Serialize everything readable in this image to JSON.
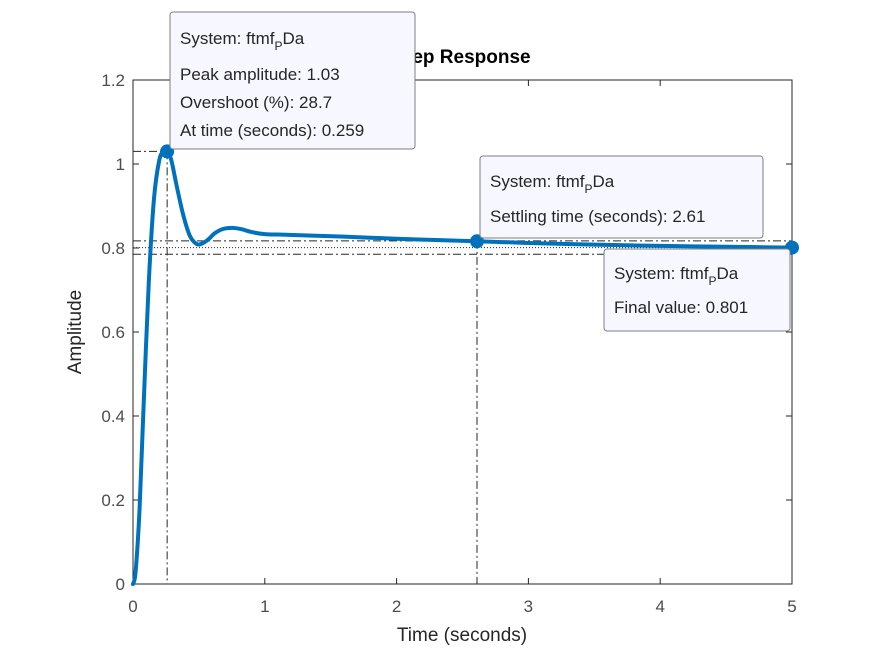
{
  "chart_data": {
    "type": "line",
    "title": "Step Response",
    "xlabel": "Time (seconds)",
    "ylabel": "Amplitude",
    "xlim": [
      0,
      5
    ],
    "ylim": [
      0,
      1.2
    ],
    "xticks": [
      "0",
      "1",
      "2",
      "3",
      "4",
      "5"
    ],
    "yticks": [
      "0",
      "0.2",
      "0.4",
      "0.6",
      "0.8",
      "1",
      "1.2"
    ],
    "grid": false,
    "line_color": "#0072bd",
    "series": [
      {
        "x": [
          0,
          0.02,
          0.05,
          0.08,
          0.12,
          0.16,
          0.2,
          0.23,
          0.259,
          0.29,
          0.33,
          0.38,
          0.43,
          0.48,
          0.52,
          0.57,
          0.62,
          0.68,
          0.75,
          0.82,
          0.9,
          1.0,
          1.1,
          1.3,
          1.6,
          2.0,
          2.3,
          2.61,
          3.0,
          3.5,
          4.0,
          4.5,
          5.0
        ],
        "y": [
          0,
          0.03,
          0.18,
          0.42,
          0.72,
          0.92,
          1.01,
          1.028,
          1.03,
          1.01,
          0.95,
          0.88,
          0.83,
          0.81,
          0.81,
          0.82,
          0.835,
          0.845,
          0.848,
          0.845,
          0.838,
          0.833,
          0.832,
          0.83,
          0.827,
          0.822,
          0.819,
          0.816,
          0.812,
          0.808,
          0.805,
          0.803,
          0.801
        ]
      }
    ],
    "markers": [
      {
        "x": 0.259,
        "y": 1.03
      },
      {
        "x": 2.61,
        "y": 0.816
      },
      {
        "x": 5.0,
        "y": 0.801
      }
    ],
    "reference_lines": {
      "peak": {
        "x": 0.259,
        "y": 1.03
      },
      "settling_time_x": 2.61,
      "settling_band": [
        0.785,
        0.817
      ],
      "final_value": 0.801
    },
    "datatips": [
      {
        "system_prefix": "System: ftmf",
        "system_sub": "P",
        "system_suffix": "Da",
        "lines": [
          "Peak amplitude: 1.03",
          "Overshoot (%): 28.7",
          "At time (seconds): 0.259"
        ]
      },
      {
        "system_prefix": "System: ftmf",
        "system_sub": "P",
        "system_suffix": "Da",
        "lines": [
          "Settling time (seconds): 2.61"
        ]
      },
      {
        "system_prefix": "System: ftmf",
        "system_sub": "P",
        "system_suffix": "Da",
        "lines": [
          "Final value: 0.801"
        ]
      }
    ]
  }
}
